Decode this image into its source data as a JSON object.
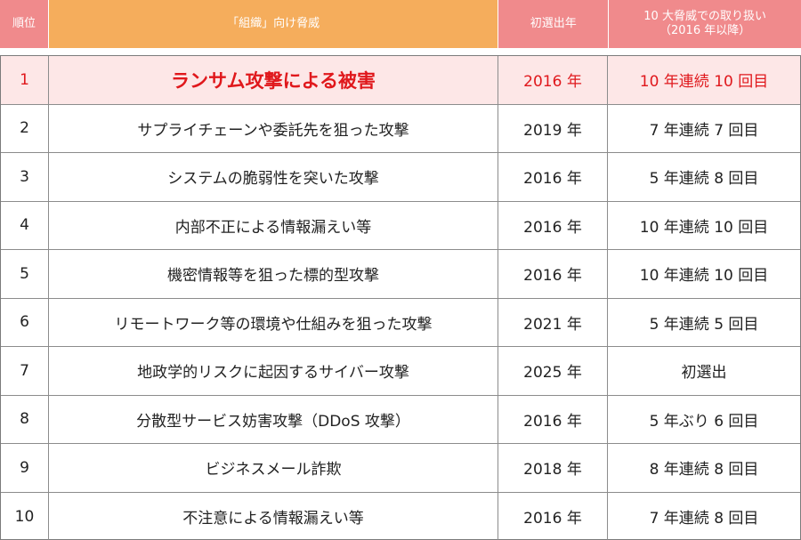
{
  "header": {
    "rank": "順位",
    "threat": "「組織」向け脅威",
    "first_year": "初選出年",
    "history_line1": "10 大脅威での取り扱い",
    "history_line2": "（2016 年以降）"
  },
  "rows": [
    {
      "rank": "1",
      "threat": "ランサム攻撃による被害",
      "year": "2016 年",
      "history": "10 年連続 10 回目"
    },
    {
      "rank": "2",
      "threat": "サプライチェーンや委託先を狙った攻撃",
      "year": "2019 年",
      "history": "7 年連続 7 回目"
    },
    {
      "rank": "3",
      "threat": "システムの脆弱性を突いた攻撃",
      "year": "2016 年",
      "history": "5 年連続 8 回目"
    },
    {
      "rank": "4",
      "threat": "内部不正による情報漏えい等",
      "year": "2016 年",
      "history": "10 年連続 10 回目"
    },
    {
      "rank": "5",
      "threat": "機密情報等を狙った標的型攻撃",
      "year": "2016 年",
      "history": "10 年連続 10 回目"
    },
    {
      "rank": "6",
      "threat": "リモートワーク等の環境や仕組みを狙った攻撃",
      "year": "2021 年",
      "history": "5 年連続 5 回目"
    },
    {
      "rank": "7",
      "threat": "地政学的リスクに起因するサイバー攻撃",
      "year": "2025 年",
      "history": "初選出"
    },
    {
      "rank": "8",
      "threat": "分散型サービス妨害攻撃（DDoS 攻撃）",
      "year": "2016 年",
      "history": "5 年ぶり 6 回目"
    },
    {
      "rank": "9",
      "threat": "ビジネスメール詐欺",
      "year": "2018 年",
      "history": "8 年連続 8 回目"
    },
    {
      "rank": "10",
      "threat": "不注意による情報漏えい等",
      "year": "2016 年",
      "history": "7 年連続 8 回目"
    }
  ],
  "colors": {
    "header_pink": "#f08a8c",
    "header_orange": "#f5ad5c",
    "highlight_bg": "#fde7e7",
    "highlight_text": "#e0181c"
  }
}
